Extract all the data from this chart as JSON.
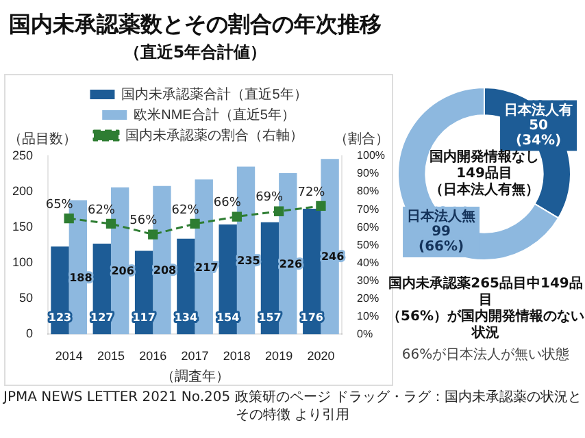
{
  "chart_data": [
    {
      "type": "bar",
      "title": "国内未承認薬数とその割合の年次推移",
      "subtitle": "（直近5年合計値）",
      "xlabel": "（調査年）",
      "ylabel": "（品目数）",
      "y2label": "（割合）",
      "categories": [
        "2014",
        "2015",
        "2016",
        "2017",
        "2018",
        "2019",
        "2020"
      ],
      "series": [
        {
          "name": "国内未承認薬合計（直近5年）",
          "color": "#1d5c96",
          "values": [
            123,
            127,
            117,
            134,
            154,
            157,
            176
          ]
        },
        {
          "name": "欧米NME合計（直近5年）",
          "color": "#8db8df",
          "values": [
            188,
            206,
            208,
            217,
            235,
            226,
            246
          ]
        },
        {
          "name": "国内未承認薬の割合（右軸）",
          "type": "line",
          "axis": "y2",
          "color": "#2e7d32",
          "line_style": "dashed",
          "marker": "square",
          "values": [
            65,
            62,
            56,
            62,
            66,
            69,
            72
          ],
          "value_labels": [
            "65%",
            "62%",
            "56%",
            "62%",
            "66%",
            "69%",
            "72%"
          ]
        }
      ],
      "ylim": [
        0,
        250
      ],
      "yticks": [
        0,
        50,
        100,
        150,
        200,
        250
      ],
      "y2lim": [
        0,
        100
      ],
      "y2ticks": [
        {
          "value": 0,
          "label": "0%"
        },
        {
          "value": 10,
          "label": "10%"
        },
        {
          "value": 20,
          "label": "20%"
        },
        {
          "value": 30,
          "label": "30%"
        },
        {
          "value": 40,
          "label": "40%"
        },
        {
          "value": 50,
          "label": "50%"
        },
        {
          "value": 60,
          "label": "60%"
        },
        {
          "value": 70,
          "label": "70%"
        },
        {
          "value": 80,
          "label": "80%"
        },
        {
          "value": 90,
          "label": "90%"
        },
        {
          "value": 100,
          "label": "100%"
        }
      ],
      "data_labels": true,
      "legend": "top",
      "grid": false,
      "annotations": [
        "JPMA NEWS LETTER 2021 No.205 政策研のページ ドラッグ・ラグ：国内未承認薬の状況とその特徴 より引用"
      ]
    },
    {
      "type": "donut",
      "categories": [
        "日本法人有",
        "日本法人無"
      ],
      "values": [
        50,
        99
      ],
      "colors": [
        "#1d5c96",
        "#8db8df"
      ],
      "value_labels": [
        "50\n(34%)",
        "99\n(66%)"
      ],
      "legend": false,
      "annotations": [
        "国内開発情報なし",
        "149品目",
        "（日本法人有無）",
        "国内未承認薬265品目中149品目",
        "（56%）が国内開発情報のない状況",
        "66%が日本法人が無い状態"
      ]
    }
  ]
}
